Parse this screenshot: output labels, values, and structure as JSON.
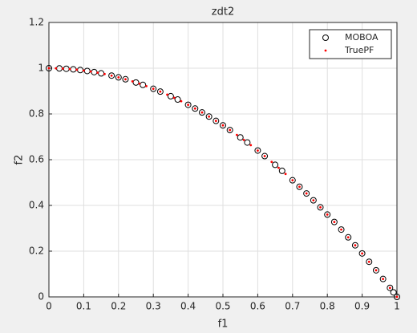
{
  "chart_data": {
    "type": "scatter",
    "title": "zdt2",
    "xlabel": "f1",
    "ylabel": "f2",
    "xlim": [
      0,
      1
    ],
    "ylim": [
      0,
      1.2
    ],
    "xticks": [
      0,
      0.1,
      0.2,
      0.3,
      0.4,
      0.5,
      0.6,
      0.7,
      0.8,
      0.9,
      1
    ],
    "yticks": [
      0,
      0.2,
      0.4,
      0.6,
      0.8,
      1,
      1.2
    ],
    "grid": true,
    "legend": "northeast",
    "series": [
      {
        "name": "MOBOA",
        "color": "#000000",
        "marker": "circle",
        "x": [
          0,
          0.03,
          0.05,
          0.07,
          0.09,
          0.11,
          0.13,
          0.15,
          0.18,
          0.2,
          0.22,
          0.25,
          0.27,
          0.3,
          0.32,
          0.35,
          0.37,
          0.4,
          0.42,
          0.44,
          0.46,
          0.48,
          0.5,
          0.52,
          0.55,
          0.57,
          0.6,
          0.62,
          0.65,
          0.67,
          0.7,
          0.72,
          0.74,
          0.76,
          0.78,
          0.8,
          0.82,
          0.84,
          0.86,
          0.88,
          0.9,
          0.92,
          0.94,
          0.96,
          0.98,
          0.99,
          1
        ],
        "values": [
          1,
          0.9991,
          0.9975,
          0.9951,
          0.9919,
          0.9879,
          0.9831,
          0.9775,
          0.9676,
          0.96,
          0.9516,
          0.9375,
          0.9271,
          0.91,
          0.8976,
          0.8775,
          0.8631,
          0.84,
          0.8236,
          0.8064,
          0.7884,
          0.7696,
          0.75,
          0.7296,
          0.6975,
          0.6751,
          0.64,
          0.6156,
          0.5775,
          0.5511,
          0.51,
          0.4816,
          0.4524,
          0.4224,
          0.3916,
          0.36,
          0.3276,
          0.2944,
          0.2604,
          0.2256,
          0.19,
          0.1536,
          0.1164,
          0.0784,
          0.0396,
          0.0199,
          0
        ]
      },
      {
        "name": "TruePF",
        "color": "#ff0000",
        "marker": "dot",
        "x": [
          0,
          0.02,
          0.04,
          0.06,
          0.08,
          0.1,
          0.12,
          0.14,
          0.16,
          0.18,
          0.2,
          0.22,
          0.24,
          0.26,
          0.28,
          0.3,
          0.32,
          0.34,
          0.36,
          0.38,
          0.4,
          0.42,
          0.44,
          0.46,
          0.48,
          0.5,
          0.52,
          0.54,
          0.56,
          0.58,
          0.6,
          0.62,
          0.64,
          0.66,
          0.68,
          0.7,
          0.72,
          0.74,
          0.76,
          0.78,
          0.8,
          0.82,
          0.84,
          0.86,
          0.88,
          0.9,
          0.92,
          0.94,
          0.96,
          0.98,
          1
        ],
        "values": [
          1,
          0.9996,
          0.9984,
          0.9964,
          0.9936,
          0.99,
          0.9856,
          0.9804,
          0.9744,
          0.9676,
          0.96,
          0.9516,
          0.9424,
          0.9324,
          0.9216,
          0.91,
          0.8976,
          0.8844,
          0.8704,
          0.8556,
          0.84,
          0.8236,
          0.8064,
          0.7884,
          0.7696,
          0.75,
          0.7296,
          0.7084,
          0.6864,
          0.6636,
          0.64,
          0.6156,
          0.5904,
          0.5644,
          0.5376,
          0.51,
          0.4816,
          0.4524,
          0.4224,
          0.3916,
          0.36,
          0.3276,
          0.2944,
          0.2604,
          0.2256,
          0.19,
          0.1536,
          0.1164,
          0.0784,
          0.0396,
          0
        ]
      }
    ]
  }
}
